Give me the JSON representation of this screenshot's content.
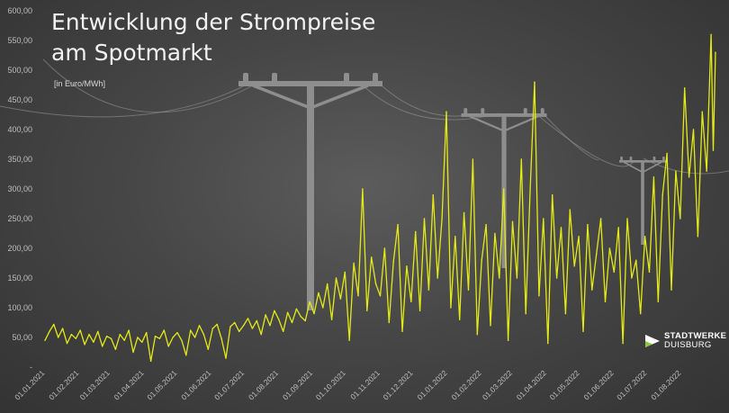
{
  "title_line1": "Entwicklung der Strompreise",
  "title_line2": "am Spotmarkt",
  "subtitle": "[in Euro/MWh]",
  "logo": {
    "line1": "STADTWERKE",
    "line2": "DUISBURG"
  },
  "colors": {
    "line": "#e4ea16",
    "pole": "#8e8e8e",
    "text": "#f2f2f2",
    "axis": "#bdbdbd"
  },
  "chart_data": {
    "type": "line",
    "title": "Entwicklung der Strompreise am Spotmarkt",
    "ylabel": "[in Euro/MWh]",
    "xlabel": "",
    "ylim": [
      0,
      600
    ],
    "y_ticks": [
      "-",
      "50,00",
      "100,00",
      "150,00",
      "200,00",
      "250,00",
      "300,00",
      "350,00",
      "400,00",
      "450,00",
      "500,00",
      "550,00",
      "600,00"
    ],
    "x_ticks": [
      "01.01.2021",
      "01.02.2021",
      "01.03.2021",
      "01.04.2021",
      "01.05.2021",
      "01.06.2021",
      "01.07.2021",
      "01.08.2021",
      "01.09.2021",
      "01.10.2021",
      "01.11.2021",
      "01.12.2021",
      "01.01.2022",
      "01.02.2022",
      "01.03.2022",
      "01.04.2022",
      "01.05.2022",
      "01.06.2022",
      "01.07.2022",
      "01.08.2022"
    ],
    "grid": false,
    "legend": "none",
    "series": [
      {
        "x": [
          "2021-01-01",
          "2021-01-05",
          "2021-01-09",
          "2021-01-13",
          "2021-01-17",
          "2021-01-21",
          "2021-01-25",
          "2021-01-29",
          "2021-02-02",
          "2021-02-06",
          "2021-02-10",
          "2021-02-14",
          "2021-02-18",
          "2021-02-22",
          "2021-02-26",
          "2021-03-02",
          "2021-03-06",
          "2021-03-10",
          "2021-03-14",
          "2021-03-18",
          "2021-03-22",
          "2021-03-26",
          "2021-03-30",
          "2021-04-03",
          "2021-04-07",
          "2021-04-11",
          "2021-04-15",
          "2021-04-19",
          "2021-04-23",
          "2021-04-27",
          "2021-05-01",
          "2021-05-05",
          "2021-05-09",
          "2021-05-13",
          "2021-05-17",
          "2021-05-21",
          "2021-05-25",
          "2021-05-29",
          "2021-06-02",
          "2021-06-06",
          "2021-06-10",
          "2021-06-14",
          "2021-06-18",
          "2021-06-22",
          "2021-06-26",
          "2021-06-30",
          "2021-07-04",
          "2021-07-08",
          "2021-07-12",
          "2021-07-16",
          "2021-07-20",
          "2021-07-24",
          "2021-07-28",
          "2021-08-01",
          "2021-08-05",
          "2021-08-09",
          "2021-08-13",
          "2021-08-17",
          "2021-08-21",
          "2021-08-25",
          "2021-08-29",
          "2021-09-02",
          "2021-09-06",
          "2021-09-10",
          "2021-09-14",
          "2021-09-18",
          "2021-09-22",
          "2021-09-26",
          "2021-09-30",
          "2021-10-04",
          "2021-10-08",
          "2021-10-12",
          "2021-10-16",
          "2021-10-20",
          "2021-10-24",
          "2021-10-28",
          "2021-11-01",
          "2021-11-05",
          "2021-11-09",
          "2021-11-13",
          "2021-11-17",
          "2021-11-21",
          "2021-11-25",
          "2021-11-29",
          "2021-12-03",
          "2021-12-07",
          "2021-12-11",
          "2021-12-15",
          "2021-12-19",
          "2021-12-23",
          "2021-12-27",
          "2021-12-31",
          "2022-01-04",
          "2022-01-08",
          "2022-01-12",
          "2022-01-16",
          "2022-01-20",
          "2022-01-24",
          "2022-01-28",
          "2022-02-01",
          "2022-02-05",
          "2022-02-09",
          "2022-02-13",
          "2022-02-17",
          "2022-02-21",
          "2022-02-25",
          "2022-03-01",
          "2022-03-05",
          "2022-03-09",
          "2022-03-13",
          "2022-03-17",
          "2022-03-21",
          "2022-03-25",
          "2022-03-29",
          "2022-04-02",
          "2022-04-06",
          "2022-04-10",
          "2022-04-14",
          "2022-04-18",
          "2022-04-22",
          "2022-04-26",
          "2022-04-30",
          "2022-05-04",
          "2022-05-08",
          "2022-05-12",
          "2022-05-16",
          "2022-05-20",
          "2022-05-24",
          "2022-05-28",
          "2022-06-01",
          "2022-06-05",
          "2022-06-09",
          "2022-06-13",
          "2022-06-17",
          "2022-06-21",
          "2022-06-25",
          "2022-06-29",
          "2022-07-03",
          "2022-07-07",
          "2022-07-11",
          "2022-07-15",
          "2022-07-19",
          "2022-07-23",
          "2022-07-27",
          "2022-07-31",
          "2022-08-04",
          "2022-08-08",
          "2022-08-12",
          "2022-08-16",
          "2022-08-20",
          "2022-08-24",
          "2022-08-28",
          "2022-08-30",
          "2022-09-01"
        ],
        "values": [
          45,
          60,
          72,
          50,
          65,
          40,
          55,
          48,
          62,
          38,
          55,
          42,
          60,
          35,
          52,
          48,
          30,
          55,
          45,
          62,
          25,
          50,
          42,
          58,
          10,
          52,
          48,
          62,
          35,
          50,
          58,
          45,
          20,
          62,
          50,
          70,
          55,
          30,
          65,
          72,
          48,
          15,
          68,
          75,
          60,
          70,
          82,
          65,
          78,
          55,
          88,
          70,
          95,
          80,
          60,
          92,
          75,
          98,
          85,
          78,
          110,
          90,
          125,
          100,
          140,
          80,
          150,
          115,
          160,
          45,
          175,
          120,
          300,
          95,
          185,
          140,
          120,
          200,
          75,
          178,
          240,
          60,
          170,
          110,
          228,
          95,
          250,
          130,
          290,
          150,
          250,
          430,
          100,
          220,
          80,
          260,
          130,
          350,
          55,
          180,
          240,
          70,
          225,
          150,
          300,
          45,
          245,
          150,
          350,
          90,
          300,
          480,
          120,
          250,
          40,
          290,
          150,
          235,
          90,
          265,
          170,
          220,
          60,
          240,
          130,
          190,
          250,
          110,
          200,
          160,
          235,
          40,
          250,
          150,
          180,
          90,
          220,
          160,
          320,
          110,
          290,
          360,
          130,
          330,
          250,
          470,
          320,
          400,
          220,
          430,
          330,
          560,
          365,
          530
        ]
      }
    ]
  }
}
